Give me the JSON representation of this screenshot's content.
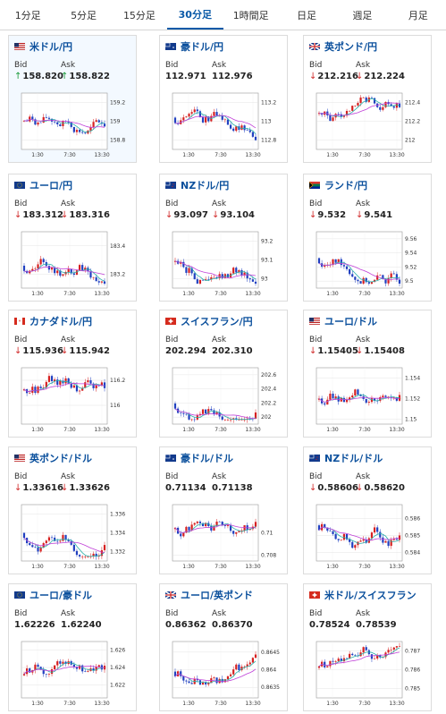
{
  "tabs": [
    {
      "label": "1分足"
    },
    {
      "label": "5分足"
    },
    {
      "label": "15分足"
    },
    {
      "label": "30分足",
      "active": true
    },
    {
      "label": "1時間足"
    },
    {
      "label": "日足"
    },
    {
      "label": "週足"
    },
    {
      "label": "月足"
    }
  ],
  "labels": {
    "bid": "Bid",
    "ask": "Ask"
  },
  "cards": [
    {
      "pair": "米ドル/円",
      "flag": "us",
      "bid": "158.820",
      "ask": "158.822",
      "trend": "up",
      "highlight": true,
      "yticks": [
        "159.2",
        "159",
        "158.8"
      ],
      "xticks": [
        "1:30",
        "7:30",
        "13:30"
      ],
      "ymin": 158.7,
      "ymax": 159.3
    },
    {
      "pair": "豪ドル/円",
      "flag": "au",
      "bid": "112.971",
      "ask": "112.976",
      "trend": "none",
      "yticks": [
        "113.2",
        "113",
        "112.8"
      ],
      "xticks": [
        "1:30",
        "7:30",
        "13:30"
      ],
      "ymin": 112.7,
      "ymax": 113.3
    },
    {
      "pair": "英ポンド/円",
      "flag": "gb",
      "bid": "212.216",
      "ask": "212.224",
      "trend": "down",
      "yticks": [
        "212.4",
        "212.2",
        "212"
      ],
      "xticks": [
        "1:30",
        "7:30",
        "13:30"
      ],
      "ymin": 211.9,
      "ymax": 212.5
    },
    {
      "pair": "ユーロ/円",
      "flag": "eu",
      "bid": "183.312",
      "ask": "183.316",
      "trend": "down",
      "yticks": [
        "183.4",
        "183.2"
      ],
      "xticks": [
        "1:30",
        "7:30",
        "13:30"
      ],
      "ymin": 183.1,
      "ymax": 183.5
    },
    {
      "pair": "NZドル/円",
      "flag": "nz",
      "bid": "93.097",
      "ask": "93.104",
      "trend": "down",
      "yticks": [
        "93.2",
        "93.1",
        "93"
      ],
      "xticks": [
        "1:30",
        "7:30",
        "13:30"
      ],
      "ymin": 92.95,
      "ymax": 93.25
    },
    {
      "pair": "ランド/円",
      "flag": "za",
      "bid": "9.532",
      "ask": "9.541",
      "trend": "down",
      "yticks": [
        "9.56",
        "9.54",
        "9.52",
        "9.5"
      ],
      "xticks": [
        "1:30",
        "7:30",
        "13:30"
      ],
      "ymin": 9.49,
      "ymax": 9.57
    },
    {
      "pair": "カナダドル/円",
      "flag": "ca",
      "bid": "115.936",
      "ask": "115.942",
      "trend": "down",
      "yticks": [
        "116.2",
        "116"
      ],
      "xticks": [
        "1:30",
        "7:30",
        "13:30"
      ],
      "ymin": 115.85,
      "ymax": 116.3
    },
    {
      "pair": "スイスフラン/円",
      "flag": "ch",
      "bid": "202.294",
      "ask": "202.310",
      "trend": "none",
      "yticks": [
        "202.6",
        "202.4",
        "202.2",
        "202"
      ],
      "xticks": [
        "1:30",
        "7:30",
        "13:30"
      ],
      "ymin": 201.9,
      "ymax": 202.7
    },
    {
      "pair": "ユーロ/ドル",
      "flag": "us",
      "bid": "1.15405",
      "ask": "1.15408",
      "trend": "down",
      "yticks": [
        "1.154",
        "1.152",
        "1.15"
      ],
      "xticks": [
        "1:30",
        "7:30",
        "13:30"
      ],
      "ymin": 1.1495,
      "ymax": 1.155
    },
    {
      "pair": "英ポンド/ドル",
      "flag": "us",
      "bid": "1.33616",
      "ask": "1.33626",
      "trend": "down",
      "yticks": [
        "1.336",
        "1.334",
        "1.332"
      ],
      "xticks": [
        "1:30",
        "7:30",
        "13:30"
      ],
      "ymin": 1.331,
      "ymax": 1.337
    },
    {
      "pair": "豪ドル/ドル",
      "flag": "au",
      "bid": "0.71134",
      "ask": "0.71138",
      "trend": "none",
      "yticks": [
        "0.71",
        "0.708"
      ],
      "xticks": [
        "1:30",
        "7:30",
        "13:30"
      ],
      "ymin": 0.7075,
      "ymax": 0.7125
    },
    {
      "pair": "NZドル/ドル",
      "flag": "nz",
      "bid": "0.58606",
      "ask": "0.58620",
      "trend": "down",
      "yticks": [
        "0.586",
        "0.585",
        "0.584"
      ],
      "xticks": [
        "1:30",
        "7:30",
        "13:30"
      ],
      "ymin": 0.5835,
      "ymax": 0.5868
    },
    {
      "pair": "ユーロ/豪ドル",
      "flag": "eu",
      "bid": "1.62226",
      "ask": "1.62240",
      "trend": "none",
      "yticks": [
        "1.626",
        "1.624",
        "1.622"
      ],
      "xticks": [
        "1:30",
        "7:30",
        "13:30"
      ],
      "ymin": 1.6205,
      "ymax": 1.627
    },
    {
      "pair": "ユーロ/英ポンド",
      "flag": "gb",
      "bid": "0.86362",
      "ask": "0.86370",
      "trend": "none",
      "yticks": [
        "0.8645",
        "0.864",
        "0.8635"
      ],
      "xticks": [
        "1:30",
        "7:30",
        "13:30"
      ],
      "ymin": 0.8632,
      "ymax": 0.8648
    },
    {
      "pair": "米ドル/スイスフラン",
      "flag": "ch",
      "bid": "0.78524",
      "ask": "0.78539",
      "trend": "none",
      "yticks": [
        "0.787",
        "0.786",
        "0.785"
      ],
      "xticks": [
        "1:30",
        "7:30",
        "13:30"
      ],
      "ymin": 0.7845,
      "ymax": 0.7875
    }
  ],
  "colors": {
    "up": "#d62020",
    "down": "#2040c0",
    "ma_short": "#2ab0a8",
    "ma_long": "#c040d8",
    "link": "#0a4f9c"
  }
}
